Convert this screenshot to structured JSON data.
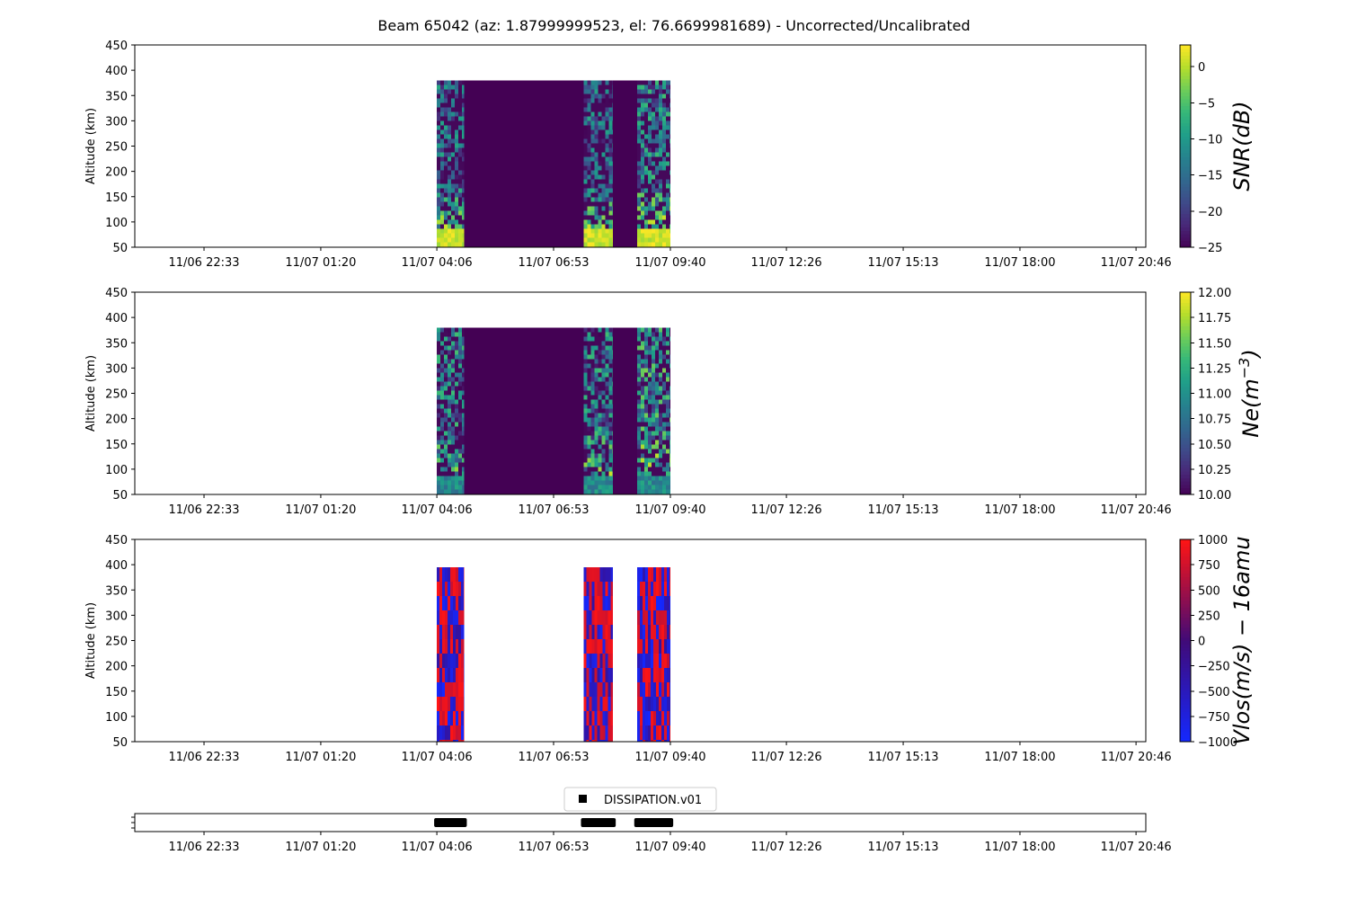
{
  "chart_data": {
    "title": "Beam 65042 (az: 1.87999999523, el: 76.6699981689) - Uncorrected/Uncalibrated",
    "x_tick_labels": [
      "11/06 22:33",
      "11/07 01:20",
      "11/07 04:06",
      "11/07 06:53",
      "11/07 09:40",
      "11/07 12:26",
      "11/07 15:13",
      "11/07 18:00",
      "11/07 20:46"
    ],
    "x_tick_hours": [
      -1.45,
      1.333,
      4.1,
      6.883,
      9.667,
      12.433,
      15.217,
      18.0,
      20.767
    ],
    "x_range_hours": [
      -3.1,
      21.0
    ],
    "data_blocks_hours": [
      [
        4.1,
        4.75
      ],
      [
        7.6,
        8.3
      ],
      [
        8.87,
        9.67
      ]
    ],
    "panels": [
      {
        "type": "heatmap",
        "ylabel": "Altitude (km)",
        "ylim": [
          50,
          450
        ],
        "yticks": [
          50,
          100,
          150,
          200,
          250,
          300,
          350,
          400,
          450
        ],
        "data_top_km": 380,
        "colormap": "viridis",
        "colorbar_label": "SNR(dB)",
        "colorbar_range": [
          -25,
          3
        ],
        "colorbar_ticks": [
          -25,
          -20,
          -15,
          -10,
          -5,
          0
        ],
        "colorbar_tick_labels": [
          "−25",
          "−20",
          "−15",
          "−10",
          "−5",
          "0"
        ]
      },
      {
        "type": "heatmap",
        "ylabel": "Altitude (km)",
        "ylim": [
          50,
          450
        ],
        "yticks": [
          50,
          100,
          150,
          200,
          250,
          300,
          350,
          400,
          450
        ],
        "data_top_km": 380,
        "colormap": "viridis",
        "colorbar_label_base": "Ne(m",
        "colorbar_label_sup": "−3",
        "colorbar_label_end": ")",
        "colorbar_range": [
          10,
          12
        ],
        "colorbar_ticks": [
          10,
          10.25,
          10.5,
          10.75,
          11,
          11.25,
          11.5,
          11.75,
          12
        ],
        "colorbar_tick_labels": [
          "10.00",
          "10.25",
          "10.50",
          "10.75",
          "11.00",
          "11.25",
          "11.50",
          "11.75",
          "12.00"
        ]
      },
      {
        "type": "heatmap",
        "ylabel": "Altitude (km)",
        "ylim": [
          50,
          450
        ],
        "yticks": [
          50,
          100,
          150,
          200,
          250,
          300,
          350,
          400,
          450
        ],
        "data_top_km": 395,
        "colormap": "blue-red",
        "colorbar_label": "Vlos(m/s) − 16amu",
        "colorbar_range": [
          -1000,
          1000
        ],
        "colorbar_ticks": [
          -1000,
          -750,
          -500,
          -250,
          0,
          250,
          500,
          750,
          1000
        ],
        "colorbar_tick_labels": [
          "−1000",
          "−750",
          "−500",
          "−250",
          "0",
          "250",
          "500",
          "750",
          "1000"
        ]
      }
    ],
    "mode_panel": {
      "type": "scatter",
      "legend": "DISSIPATION.v01",
      "legend_position": "top-center",
      "marker": "square",
      "color": "#000000"
    }
  }
}
